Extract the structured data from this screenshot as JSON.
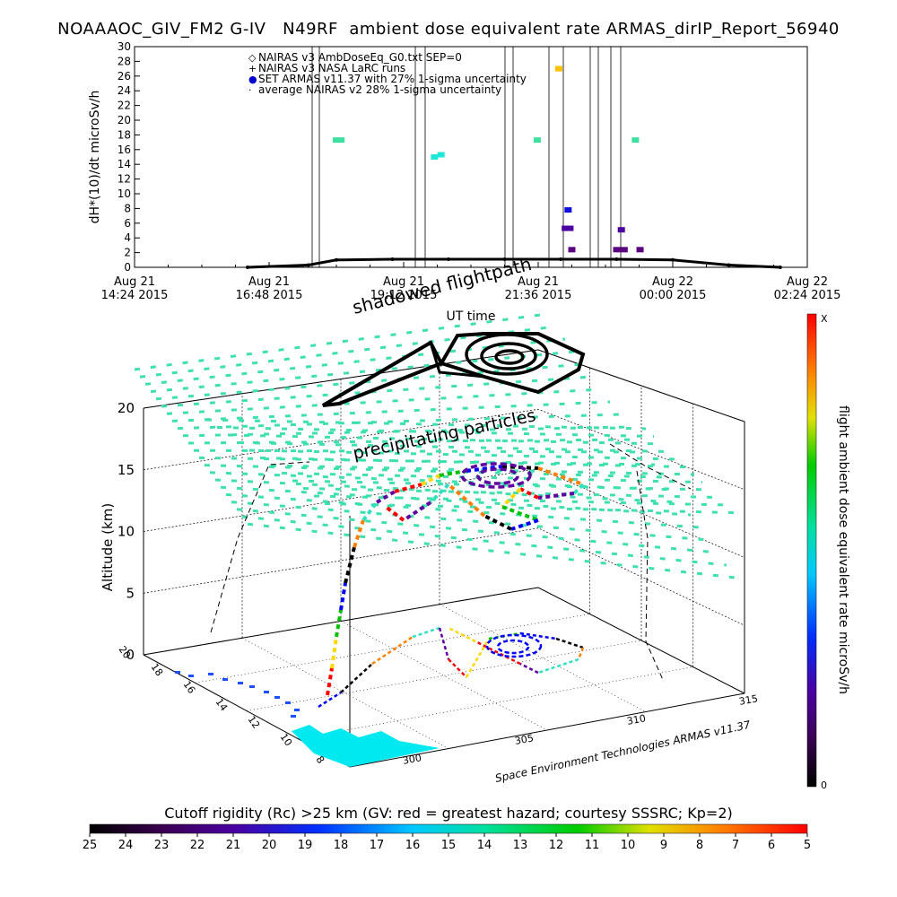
{
  "title": "NOAAAOC_GIV_FM2 G-IV   N49RF  ambient dose equivalent rate ARMAS_dirIP_Report_56940",
  "top_plot": {
    "ylabel": "dH*(10)/dt microSv/h",
    "xlabel": "UT time",
    "x_ticks": [
      {
        "line1": "Aug 21",
        "line2": "14:24 2015"
      },
      {
        "line1": "Aug 21",
        "line2": "16:48 2015"
      },
      {
        "line1": "Aug 21",
        "line2": "19:12 2015"
      },
      {
        "line1": "Aug 21",
        "line2": "21:36 2015"
      },
      {
        "line1": "Aug 22",
        "line2": "00:00 2015"
      },
      {
        "line1": "Aug 22",
        "line2": "02:24 2015"
      }
    ],
    "legend": [
      {
        "symbol": "◇",
        "text": "NAIRAS v3 AmbDoseEq_G0.txt SEP=0",
        "color": "#000000"
      },
      {
        "symbol": "+",
        "text": "NAIRAS v3 NASA LaRC runs",
        "color": "#000000"
      },
      {
        "symbol": "●",
        "text": "SET ARMAS v11.37 with 27% 1-sigma uncertainty",
        "color": "#0000cc"
      },
      {
        "symbol": "·",
        "text": "average NAIRAS v2 28% 1-sigma uncertainty",
        "color": "#000000"
      }
    ]
  },
  "three_d": {
    "shadow_label": "shadowed flightpath",
    "precip_label": "precipitating particles",
    "z_axis_label": "Altitude (km)",
    "z_ticks": [
      "0",
      "5",
      "10",
      "15",
      "20"
    ],
    "lat_ticks": [
      "8",
      "10",
      "12",
      "14",
      "16",
      "18",
      "20"
    ],
    "lon_ticks": [
      "300",
      "305",
      "310",
      "315"
    ],
    "credit": "Space Environment Technologies ARMAS v11.37"
  },
  "right_colorbar": {
    "label": "flight ambient dose equivalent rate microSv/h",
    "top_label": "X",
    "bottom_label": "0"
  },
  "bottom_colorbar": {
    "title": "Cutoff rigidity (Rc) >25 km (GV: red = greatest hazard; courtesy SSSRC; Kp=2)",
    "ticks": [
      "25",
      "24",
      "23",
      "22",
      "21",
      "20",
      "19",
      "18",
      "17",
      "16",
      "15",
      "14",
      "13",
      "12",
      "11",
      "10",
      "9",
      "8",
      "7",
      "6",
      "5"
    ]
  },
  "chart_data": {
    "type": "scatter",
    "title": "NOAAAOC_GIV_FM2 G-IV   N49RF  ambient dose equivalent rate ARMAS_dirIP_Report_56940",
    "xlabel": "UT time",
    "ylabel": "dH*(10)/dt microSv/h",
    "x_range_hours_since_2015-08-21T14:24": [
      0,
      12
    ],
    "ylim": [
      0,
      30
    ],
    "y_ticks": [
      0,
      2,
      4,
      6,
      8,
      10,
      12,
      14,
      16,
      18,
      20,
      22,
      24,
      26,
      28,
      30
    ],
    "series": [
      {
        "name": "NAIRAS v3 AmbDoseEq_G0.txt SEP=0",
        "color": "#000000",
        "x": [
          "2015-08-21T16:25",
          "2015-08-21T17:30",
          "2015-08-21T18:00",
          "2015-08-21T19:00",
          "2015-08-21T20:00",
          "2015-08-21T21:00",
          "2015-08-21T22:00",
          "2015-08-21T23:00",
          "2015-08-22T00:00",
          "2015-08-22T01:00",
          "2015-08-22T01:55"
        ],
        "values": [
          0.0,
          0.3,
          1.0,
          1.1,
          1.1,
          1.1,
          1.1,
          1.1,
          1.0,
          0.3,
          0.0
        ]
      },
      {
        "name": "SET ARMAS v11.37 with 27% 1-sigma uncertainty",
        "x": [
          "2015-08-21T18:00",
          "2015-08-21T18:05",
          "2015-08-21T19:45",
          "2015-08-21T19:52",
          "2015-08-21T21:35",
          "2015-08-21T21:58",
          "2015-08-21T22:05",
          "2015-08-21T22:08",
          "2015-08-21T22:10",
          "2015-08-21T22:12",
          "2015-08-21T23:00",
          "2015-08-21T23:05",
          "2015-08-21T23:08",
          "2015-08-21T23:20",
          "2015-08-21T23:25"
        ],
        "values": [
          17.3,
          17.3,
          15.0,
          15.3,
          17.3,
          27.0,
          5.3,
          7.8,
          5.3,
          2.4,
          2.4,
          5.1,
          2.4,
          17.3,
          2.4
        ]
      }
    ]
  }
}
